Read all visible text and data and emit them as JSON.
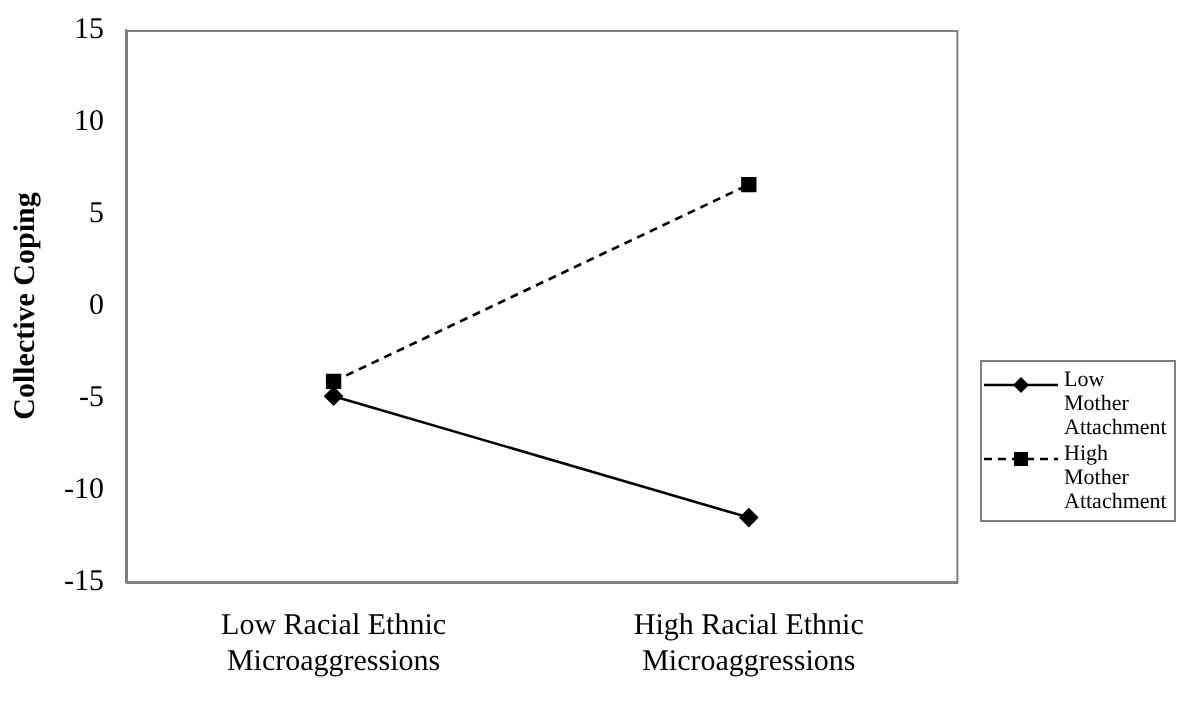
{
  "chart_data": {
    "type": "line",
    "ylabel": "Collective Coping",
    "categories": [
      "Low Racial Ethnic\nMicroaggressions",
      "High Racial Ethnic\nMicroaggressions"
    ],
    "series": [
      {
        "name": "Low Mother Attachment",
        "color": "#000000",
        "values": [
          -4.9,
          -11.5
        ],
        "marker": "diamond",
        "line_style": "solid"
      },
      {
        "name": "High Mother Attachment",
        "color": "#000000",
        "values": [
          -4.1,
          6.6
        ],
        "marker": "square",
        "line_style": "dashed"
      }
    ],
    "ylim": [
      -15,
      15
    ],
    "yticks": [
      -15,
      -10,
      -5,
      0,
      5,
      10,
      15
    ],
    "grid": false,
    "legend": "right"
  }
}
